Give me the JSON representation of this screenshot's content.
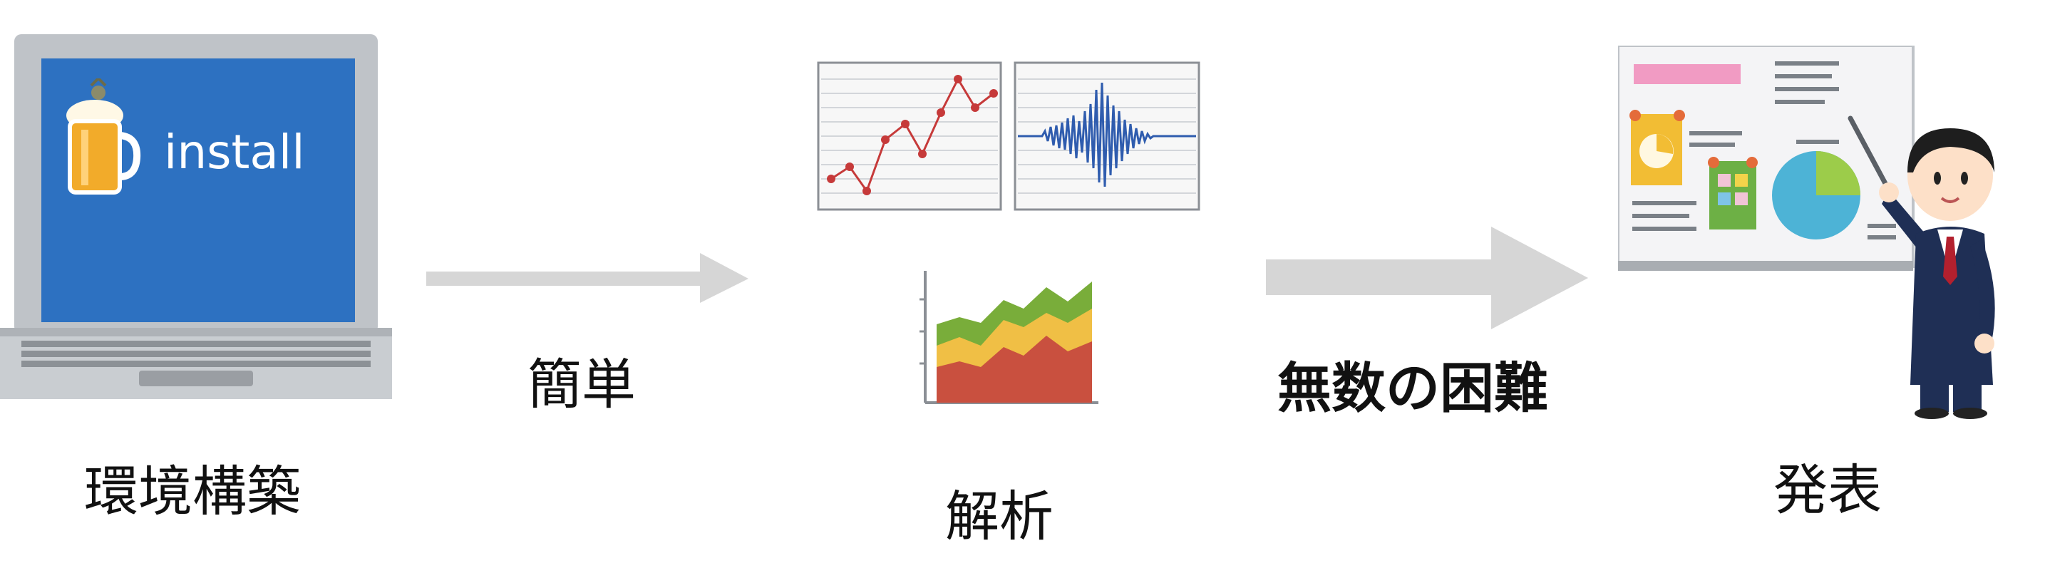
{
  "laptop": {
    "screen_text": "install"
  },
  "labels": {
    "env_setup": "環境構築",
    "simple": "簡単",
    "analysis": "解析",
    "countless_difficulties": "無数の困難",
    "presentation": "発表"
  },
  "colors": {
    "screen_blue": "#2d71c1",
    "arrow_gray": "#d6d6d6",
    "line_red": "#c63a3a",
    "wave_blue": "#2f5cae",
    "area_red": "#c9503f",
    "area_yellow": "#f0bf45",
    "area_green": "#79ad3a",
    "suit_navy": "#1f2f55"
  }
}
